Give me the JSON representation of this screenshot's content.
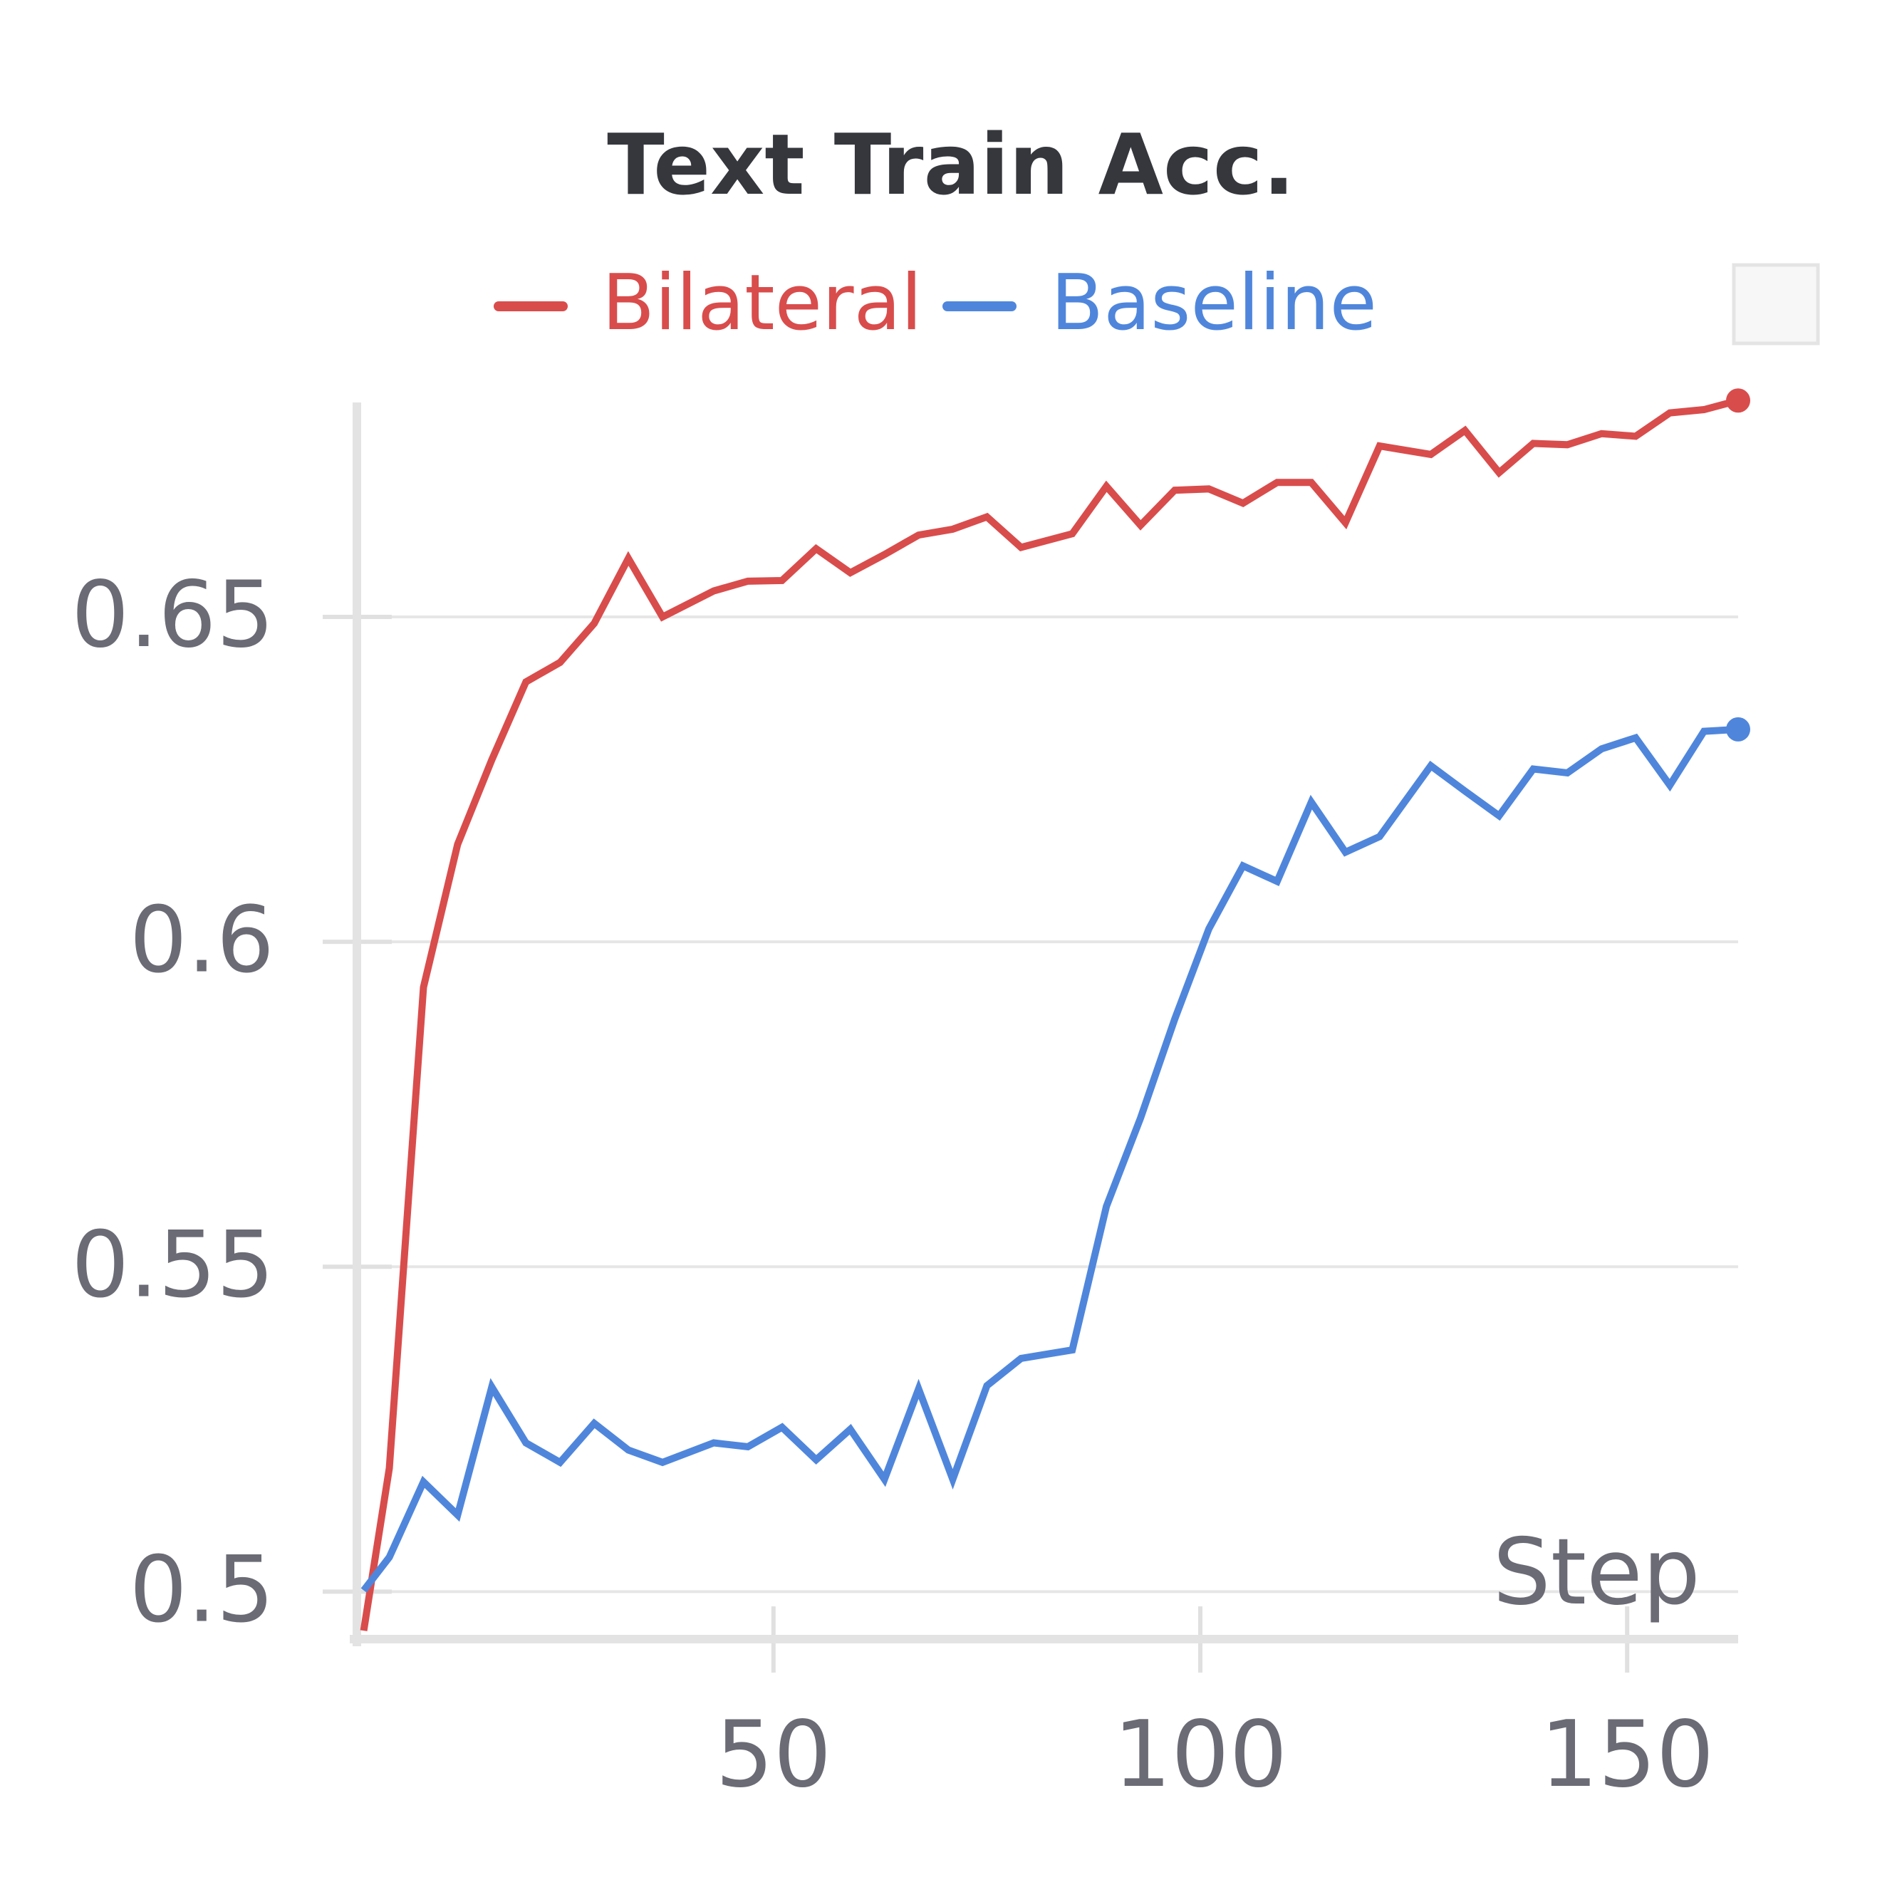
{
  "chart_data": {
    "type": "line",
    "title": "Text Train Acc.",
    "x_label": "Step",
    "x": [
      2,
      5,
      9,
      13,
      17,
      21,
      25,
      29,
      33,
      37,
      43,
      47,
      51,
      55,
      59,
      63,
      67,
      71,
      75,
      79,
      85,
      89,
      93,
      97,
      101,
      105,
      109,
      113,
      117,
      121,
      127,
      131,
      135,
      139,
      143,
      147,
      151,
      155,
      159,
      163
    ],
    "series": [
      {
        "name": "Bilateral",
        "color": "#d94c4c",
        "values": [
          0.494,
          0.519,
          0.593,
          0.615,
          0.628,
          0.64,
          0.643,
          0.649,
          0.659,
          0.65,
          0.654,
          0.6555,
          0.6556,
          0.6605,
          0.6568,
          0.6596,
          0.6626,
          0.6635,
          0.6654,
          0.6607,
          0.6628,
          0.6701,
          0.6641,
          0.6695,
          0.6697,
          0.6675,
          0.6707,
          0.6707,
          0.6645,
          0.6763,
          0.675,
          0.6787,
          0.6722,
          0.6767,
          0.6765,
          0.6782,
          0.6778,
          0.6814,
          0.6819,
          0.6833
        ]
      },
      {
        "name": "Baseline",
        "color": "#4f86dc",
        "values": [
          0.5002,
          0.5053,
          0.5169,
          0.5118,
          0.5315,
          0.5229,
          0.5199,
          0.5259,
          0.5218,
          0.5199,
          0.5229,
          0.5223,
          0.5253,
          0.5203,
          0.525,
          0.5173,
          0.5312,
          0.5173,
          0.5317,
          0.5359,
          0.5372,
          0.5593,
          0.5729,
          0.5881,
          0.602,
          0.6117,
          0.6093,
          0.6215,
          0.6138,
          0.6162,
          0.6271,
          0.6232,
          0.6194,
          0.6266,
          0.626,
          0.6297,
          0.6314,
          0.6241,
          0.6324,
          0.6327
        ]
      }
    ],
    "xlim": [
      1.2,
      163
    ],
    "xticks": [
      50,
      100,
      150
    ],
    "ylim": [
      0.4927,
      0.683
    ],
    "yticks": [
      0.5,
      0.55,
      0.6,
      0.65
    ],
    "grid": true
  }
}
